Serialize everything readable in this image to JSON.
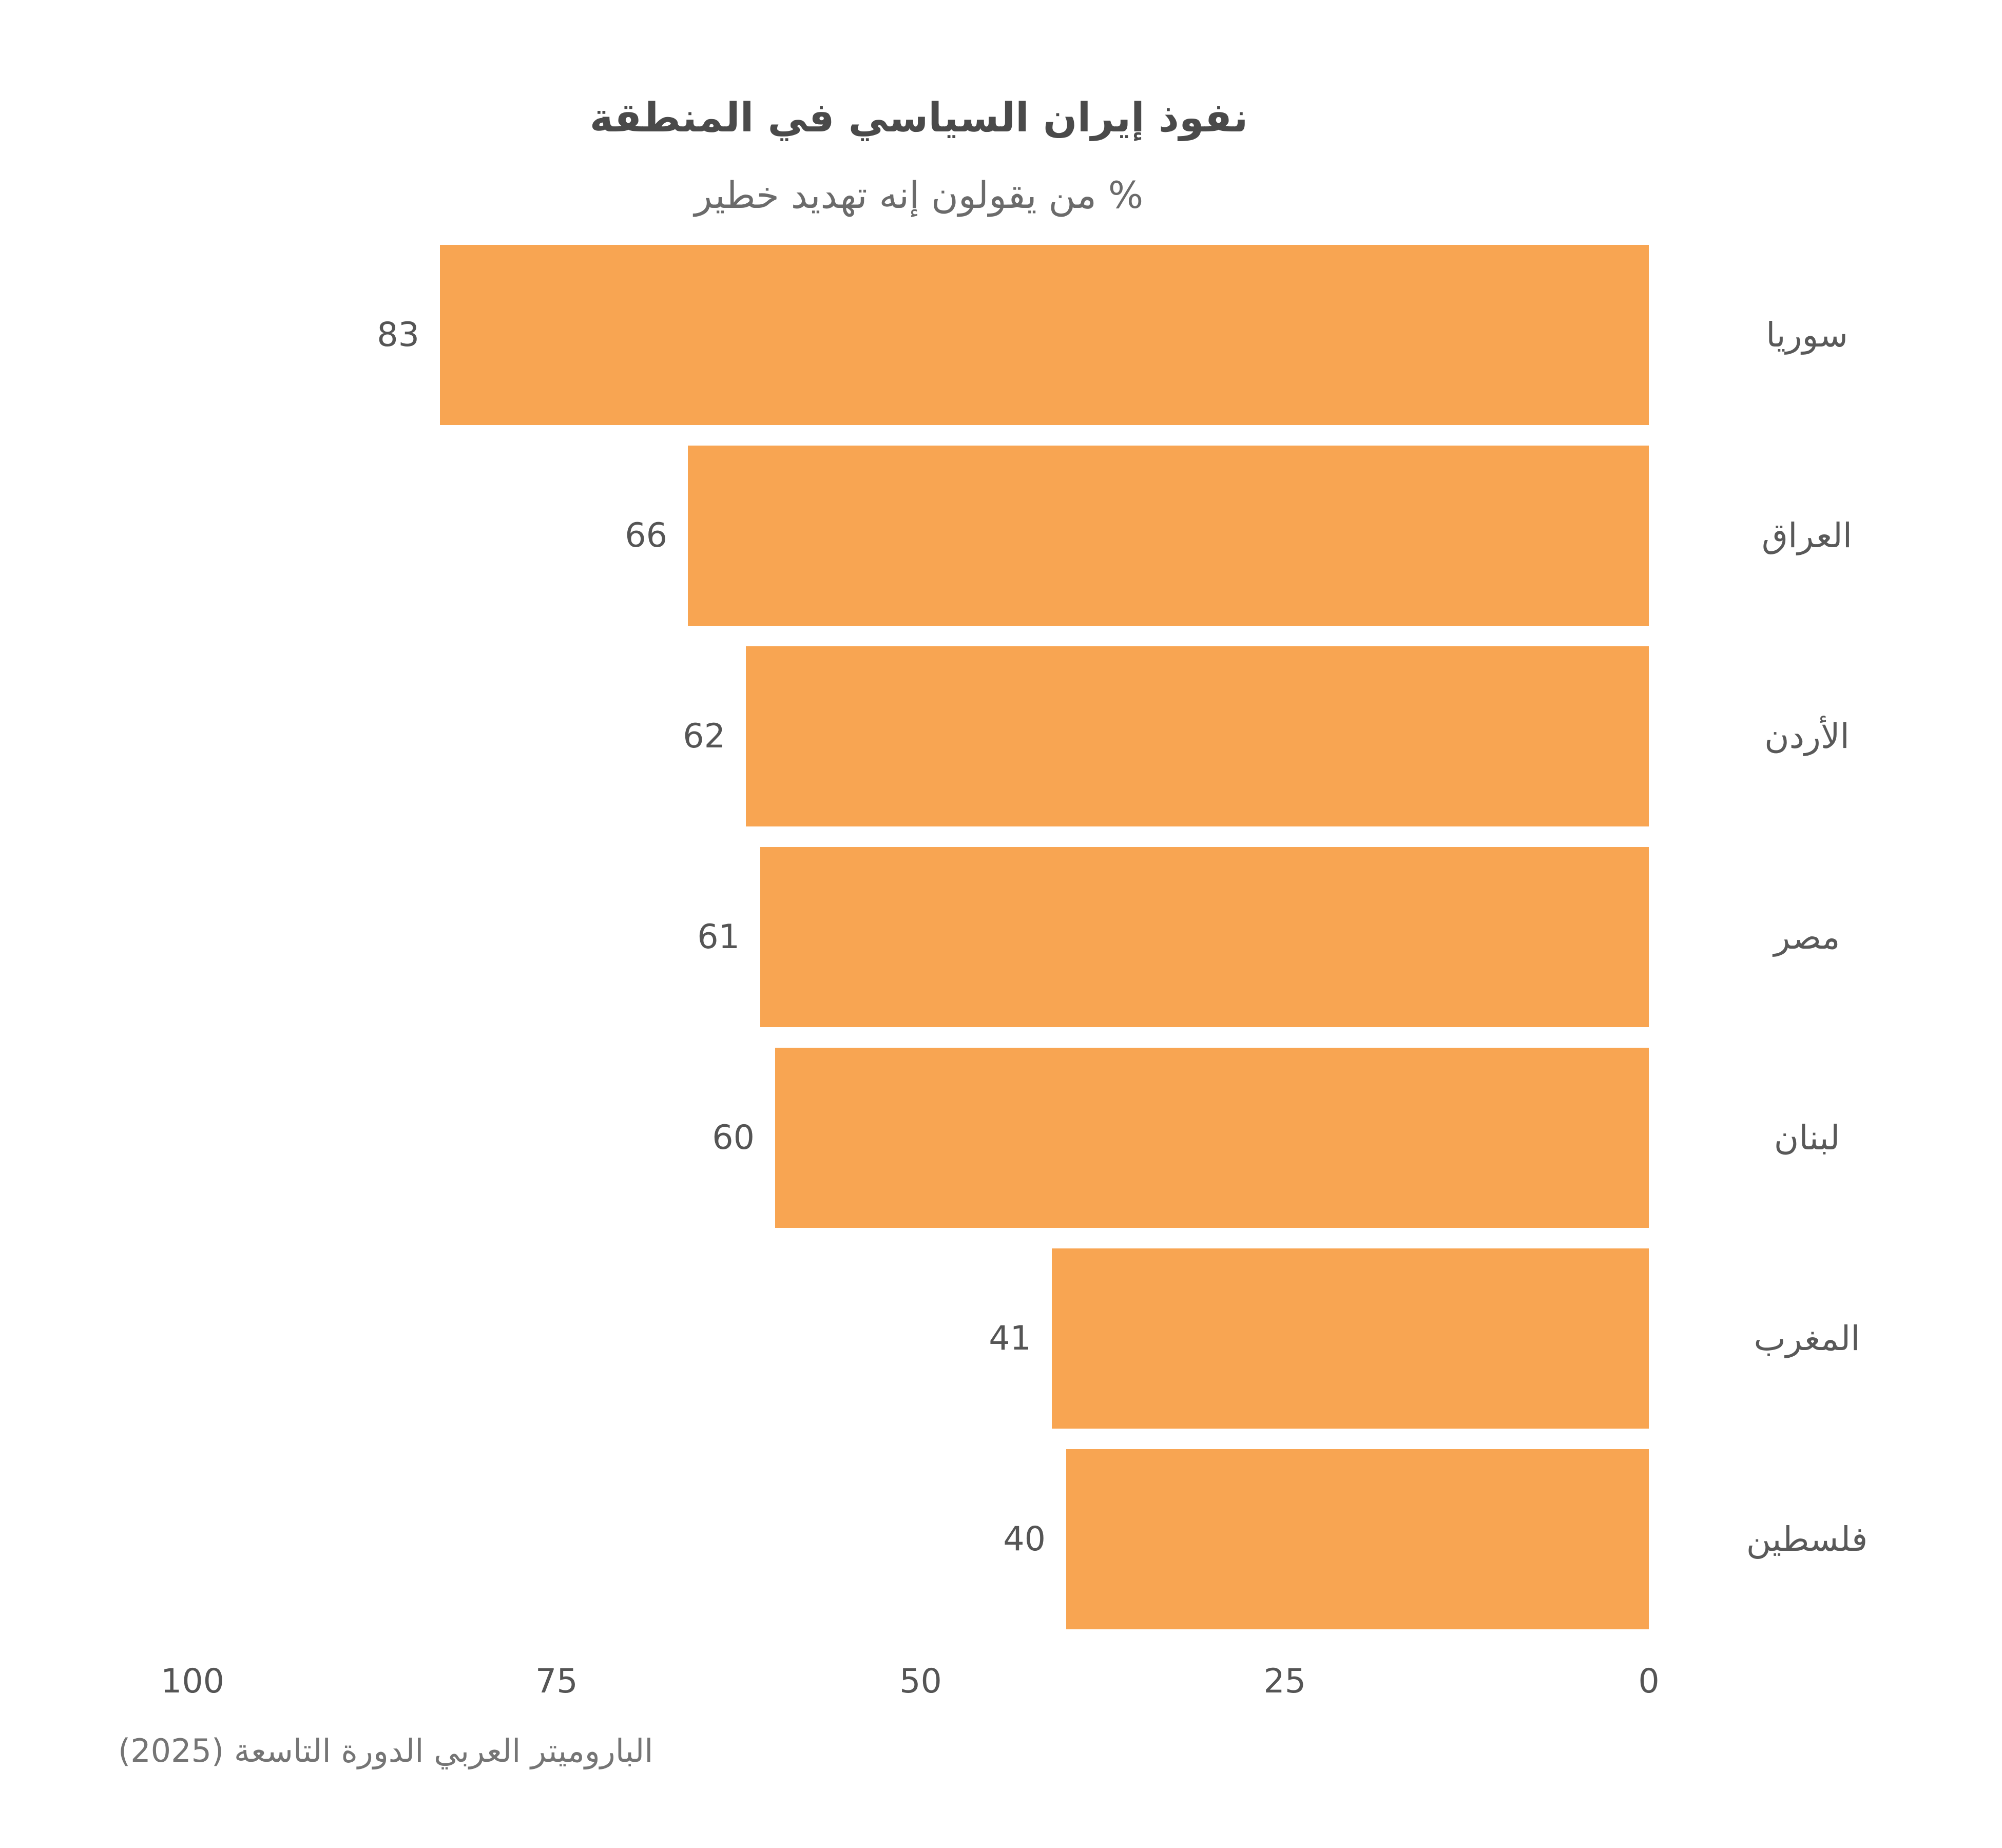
{
  "chart_data": {
    "type": "bar",
    "orientation": "horizontal-rtl",
    "title": "نفوذ إيران السياسي في المنطقة",
    "subtitle": "% من يقولون إنه تهديد خطير",
    "categories": [
      "سوريا",
      "العراق",
      "الأردن",
      "مصر",
      "لبنان",
      "المغرب",
      "فلسطين"
    ],
    "values": [
      83,
      66,
      62,
      61,
      60,
      41,
      40
    ],
    "xlabel": "",
    "ylabel": "",
    "xlim": [
      0,
      100
    ],
    "x_ticks": [
      100,
      75,
      50,
      25,
      0
    ],
    "grid": false,
    "legend": false,
    "bar_color": "#F8A552",
    "source": "الباروميتر العربي الدورة التاسعة (2025)"
  }
}
